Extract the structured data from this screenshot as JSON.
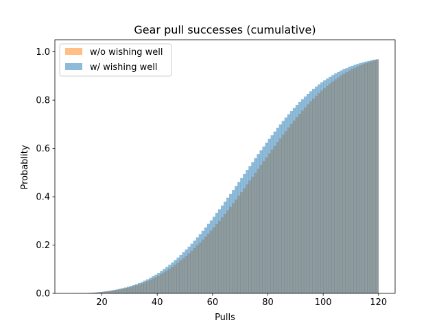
{
  "chart_data": {
    "type": "bar",
    "title": "Gear pull successes (cumulative)",
    "xlabel": "Pulls",
    "ylabel": "Probablity",
    "xlim": [
      3,
      126
    ],
    "ylim": [
      0,
      1.05
    ],
    "xticks": [
      20,
      40,
      60,
      80,
      100,
      120
    ],
    "yticks": [
      "0.0",
      "0.2",
      "0.4",
      "0.6",
      "0.8",
      "1.0"
    ],
    "grid": false,
    "legend_position": "upper left",
    "x": [
      10,
      11,
      12,
      13,
      14,
      15,
      16,
      17,
      18,
      19,
      20,
      21,
      22,
      23,
      24,
      25,
      26,
      27,
      28,
      29,
      30,
      31,
      32,
      33,
      34,
      35,
      36,
      37,
      38,
      39,
      40,
      41,
      42,
      43,
      44,
      45,
      46,
      47,
      48,
      49,
      50,
      51,
      52,
      53,
      54,
      55,
      56,
      57,
      58,
      59,
      60,
      61,
      62,
      63,
      64,
      65,
      66,
      67,
      68,
      69,
      70,
      71,
      72,
      73,
      74,
      75,
      76,
      77,
      78,
      79,
      80,
      81,
      82,
      83,
      84,
      85,
      86,
      87,
      88,
      89,
      90,
      91,
      92,
      93,
      94,
      95,
      96,
      97,
      98,
      99,
      100,
      101,
      102,
      103,
      104,
      105,
      106,
      107,
      108,
      109,
      110,
      111,
      112,
      113,
      114,
      115,
      116,
      117,
      118,
      119
    ],
    "series": [
      {
        "name": "w/o wishing well",
        "color": "#ff7f0e",
        "opacity": 0.5,
        "values": [
          0.0003,
          0.0005,
          0.0007,
          0.001,
          0.0014,
          0.0019,
          0.0025,
          0.0032,
          0.0041,
          0.0052,
          0.0064,
          0.0078,
          0.0093,
          0.011,
          0.0128,
          0.0148,
          0.0169,
          0.0192,
          0.0216,
          0.0242,
          0.027,
          0.0301,
          0.0335,
          0.0372,
          0.0412,
          0.0456,
          0.0504,
          0.0555,
          0.061,
          0.0669,
          0.0732,
          0.0798,
          0.0868,
          0.0942,
          0.1019,
          0.11,
          0.1184,
          0.1272,
          0.1364,
          0.1459,
          0.1558,
          0.166,
          0.1766,
          0.1876,
          0.1989,
          0.2105,
          0.2225,
          0.2348,
          0.2474,
          0.2603,
          0.2735,
          0.287,
          0.3008,
          0.3149,
          0.3292,
          0.3438,
          0.3586,
          0.3736,
          0.3888,
          0.4042,
          0.4197,
          0.4354,
          0.4512,
          0.4671,
          0.4831,
          0.4991,
          0.5152,
          0.5312,
          0.5473,
          0.5633,
          0.5792,
          0.595,
          0.6107,
          0.6263,
          0.6417,
          0.657,
          0.672,
          0.6868,
          0.7014,
          0.7157,
          0.7297,
          0.7434,
          0.7568,
          0.7698,
          0.7825,
          0.7948,
          0.8067,
          0.8182,
          0.8293,
          0.84,
          0.8502,
          0.86,
          0.8693,
          0.8782,
          0.8866,
          0.8946,
          0.9022,
          0.9094,
          0.9162,
          0.9226,
          0.9286,
          0.9342,
          0.9395,
          0.9444,
          0.949,
          0.9532,
          0.9571,
          0.9607,
          0.964,
          0.967
        ]
      },
      {
        "name": "w/ wishing well",
        "color": "#1f77b4",
        "opacity": 0.5,
        "values": [
          0.0003,
          0.0005,
          0.0008,
          0.0011,
          0.0015,
          0.0021,
          0.0027,
          0.0035,
          0.0045,
          0.0057,
          0.007,
          0.0085,
          0.0102,
          0.0121,
          0.0142,
          0.0164,
          0.0188,
          0.0214,
          0.0242,
          0.0273,
          0.0306,
          0.0343,
          0.0383,
          0.0427,
          0.0474,
          0.0526,
          0.0582,
          0.0643,
          0.0707,
          0.0776,
          0.0849,
          0.0927,
          0.1009,
          0.1095,
          0.1185,
          0.128,
          0.1379,
          0.1482,
          0.1589,
          0.17,
          0.1815,
          0.1935,
          0.2058,
          0.2185,
          0.2316,
          0.2451,
          0.2589,
          0.273,
          0.2875,
          0.3022,
          0.3172,
          0.3325,
          0.348,
          0.3637,
          0.3796,
          0.3957,
          0.4119,
          0.4282,
          0.4446,
          0.4611,
          0.4776,
          0.4941,
          0.5106,
          0.5271,
          0.5435,
          0.5598,
          0.576,
          0.5921,
          0.6081,
          0.6239,
          0.6395,
          0.6549,
          0.67,
          0.6849,
          0.6995,
          0.7138,
          0.7278,
          0.7414,
          0.7547,
          0.7676,
          0.7801,
          0.7922,
          0.8039,
          0.8152,
          0.826,
          0.8364,
          0.8464,
          0.8559,
          0.865,
          0.8737,
          0.8819,
          0.8897,
          0.8971,
          0.9041,
          0.9107,
          0.9169,
          0.9227,
          0.9281,
          0.9332,
          0.9379,
          0.9423,
          0.9464,
          0.9502,
          0.9537,
          0.9569,
          0.9599,
          0.9626,
          0.9651,
          0.9674,
          0.9695
        ]
      }
    ]
  }
}
